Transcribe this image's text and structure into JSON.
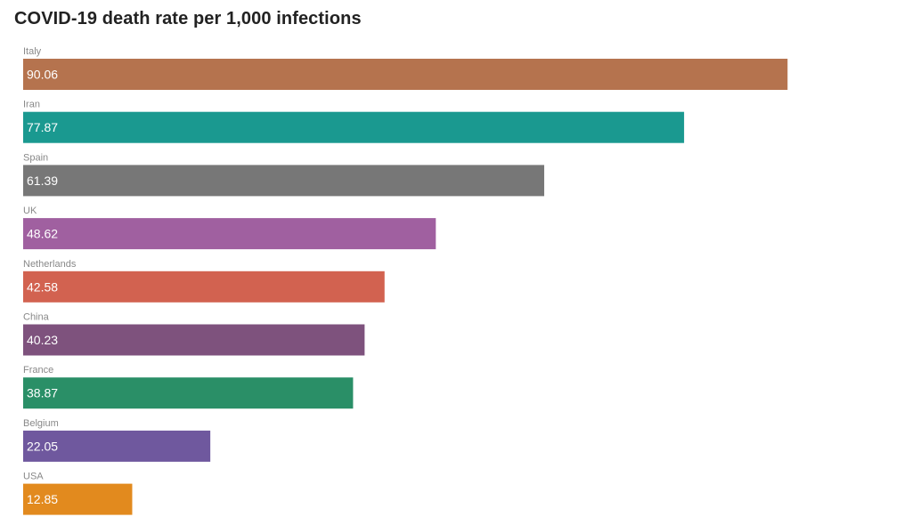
{
  "chart_data": {
    "type": "bar",
    "orientation": "horizontal",
    "title": "COVID-19 death rate per 1,000 infections",
    "categories": [
      "Italy",
      "Iran",
      "Spain",
      "UK",
      "Netherlands",
      "China",
      "France",
      "Belgium",
      "USA"
    ],
    "values": [
      90.06,
      77.87,
      61.39,
      48.62,
      42.58,
      40.23,
      38.87,
      22.05,
      12.85
    ],
    "value_labels": [
      "90.06",
      "77.87",
      "61.39",
      "48.62",
      "42.58",
      "40.23",
      "38.87",
      "22.05",
      "12.85"
    ],
    "colors": [
      "#B5734E",
      "#1A9990",
      "#777777",
      "#A060A0",
      "#D26250",
      "#7E527D",
      "#2A8F67",
      "#6F589E",
      "#E28A1E"
    ],
    "xlim": [
      0,
      100
    ],
    "grid": false,
    "legend": "none"
  }
}
